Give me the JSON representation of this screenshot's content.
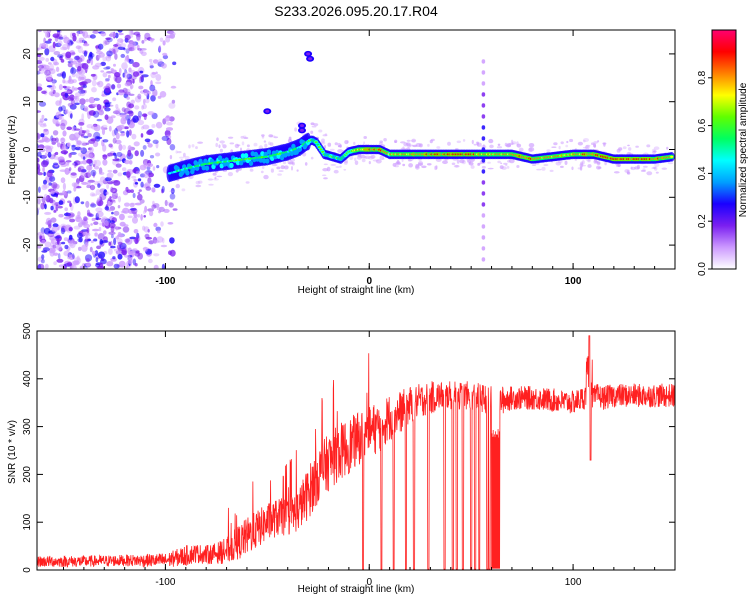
{
  "title": "S233.2026.095.20.17.R04",
  "chart_data": [
    {
      "type": "heatmap",
      "name": "spectrogram",
      "xlabel": "Height of straight line (km)",
      "ylabel": "Frequency (Hz)",
      "xlim": [
        -163,
        150
      ],
      "ylim": [
        -25,
        25
      ],
      "x_ticks": [
        "-100",
        "0",
        "100"
      ],
      "y_ticks": [
        "20",
        "10",
        "0",
        "-10",
        "-20"
      ],
      "colorbar": {
        "label": "Normalized spectral amplitude",
        "range": [
          0,
          1
        ],
        "ticks": [
          "0.0",
          "0.2",
          "0.4",
          "0.6",
          "0.8"
        ],
        "colors": [
          "#ffffff",
          "#cc99ff",
          "#7a1ff0",
          "#1a00ff",
          "#00a0ff",
          "#00ffff",
          "#00ff60",
          "#60ff00",
          "#ffff00",
          "#ff8000",
          "#ff0000",
          "#ff0070"
        ]
      },
      "ridge": {
        "x": [
          -98,
          -90,
          -80,
          -70,
          -60,
          -50,
          -40,
          -34,
          -31,
          -28,
          -26,
          -22,
          -18,
          -14,
          -10,
          -5,
          0,
          5,
          10,
          20,
          30,
          40,
          50,
          55,
          60,
          70,
          80,
          90,
          100,
          110,
          120,
          130,
          140,
          149
        ],
        "y": [
          -5,
          -4,
          -3,
          -2.5,
          -2,
          -1.5,
          -0.5,
          0.5,
          1.5,
          2,
          1.5,
          -1,
          -1.5,
          -2,
          -0.5,
          0,
          0,
          0,
          -1,
          -1,
          -1,
          -1,
          -1,
          -1,
          -1,
          -1,
          -2,
          -1.5,
          -1,
          -1,
          -2,
          -2,
          -2,
          -1.5
        ],
        "amplitude": [
          0.45,
          0.5,
          0.55,
          0.55,
          0.6,
          0.55,
          0.55,
          0.5,
          0.55,
          0.6,
          0.6,
          0.6,
          0.55,
          0.6,
          0.65,
          0.75,
          0.85,
          0.85,
          0.75,
          0.8,
          0.85,
          0.9,
          0.85,
          0.8,
          0.8,
          0.8,
          0.85,
          0.8,
          0.8,
          0.85,
          0.9,
          0.9,
          0.85,
          0.75
        ]
      },
      "spike_x": 56
    },
    {
      "type": "line",
      "name": "snr",
      "xlabel": "Height of straight line (km)",
      "ylabel": "SNR (10 * v/v)",
      "xlim": [
        -163,
        150
      ],
      "ylim": [
        0,
        500
      ],
      "x_ticks": [
        "-100",
        "0",
        "100"
      ],
      "y_ticks": [
        "0",
        "100",
        "200",
        "300",
        "400",
        "500"
      ],
      "color": "#ff2020",
      "series": [
        {
          "name": "SNR",
          "x": [
            -163,
            -140,
            -120,
            -100,
            -95,
            -90,
            -85,
            -80,
            -75,
            -70,
            -65,
            -60,
            -55,
            -50,
            -45,
            -40,
            -35,
            -30,
            -25,
            -20,
            -15,
            -10,
            -5,
            0,
            5,
            10,
            15,
            20,
            25,
            30,
            35,
            40,
            45,
            50,
            55,
            60,
            65,
            70,
            80,
            90,
            100,
            105,
            108,
            110,
            112,
            115,
            120,
            130,
            140,
            150
          ],
          "y": [
            18,
            18,
            20,
            20,
            25,
            30,
            35,
            32,
            35,
            40,
            55,
            70,
            85,
            100,
            110,
            110,
            125,
            160,
            200,
            225,
            245,
            260,
            275,
            290,
            300,
            320,
            330,
            345,
            355,
            360,
            365,
            365,
            365,
            365,
            360,
            355,
            355,
            360,
            360,
            355,
            350,
            360,
            370,
            360,
            365,
            360,
            365,
            365,
            365,
            365
          ],
          "noise": [
            12,
            12,
            12,
            15,
            18,
            22,
            20,
            20,
            22,
            28,
            35,
            40,
            40,
            40,
            40,
            40,
            45,
            55,
            60,
            60,
            60,
            60,
            55,
            55,
            55,
            50,
            45,
            40,
            35,
            35,
            30,
            30,
            30,
            30,
            30,
            30,
            30,
            25,
            25,
            25,
            25,
            25,
            30,
            25,
            25,
            25,
            25,
            25,
            25,
            25
          ]
        }
      ],
      "dropouts": [
        -3,
        6,
        12,
        18,
        22,
        29,
        37,
        41,
        43,
        46,
        50,
        52,
        54,
        58,
        59
      ],
      "dip_region": [
        60,
        64,
        285
      ],
      "spike": {
        "x": 108,
        "y_max": 490,
        "y_min": 230
      }
    }
  ]
}
